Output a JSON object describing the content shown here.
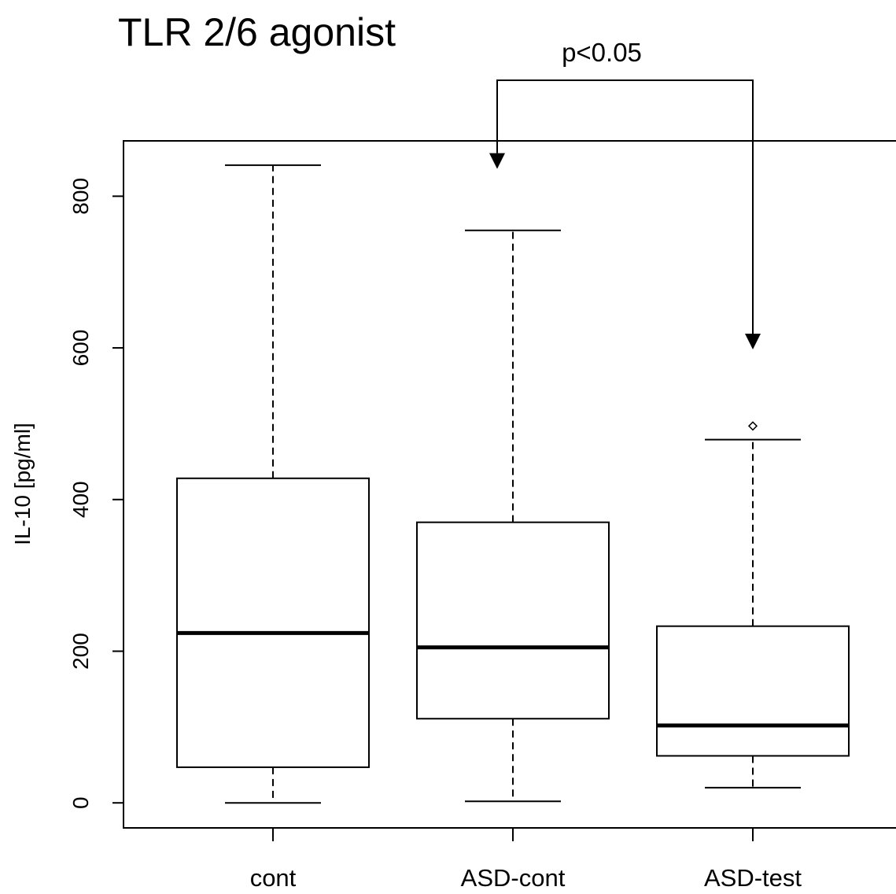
{
  "chart_data": {
    "type": "boxplot",
    "title": "TLR 2/6 agonist",
    "xlabel": "",
    "ylabel": "IL-10 [pg/ml]",
    "ylim": [
      -33,
      873
    ],
    "yticks": [
      0,
      200,
      400,
      600,
      800
    ],
    "categories": [
      "cont",
      "ASD-cont",
      "ASD-test"
    ],
    "boxes": [
      {
        "category": "cont",
        "whisker_low": 0,
        "q1": 47,
        "median": 224,
        "q3": 428,
        "whisker_high": 841,
        "outliers": []
      },
      {
        "category": "ASD-cont",
        "whisker_low": 2,
        "q1": 111,
        "median": 205,
        "q3": 370,
        "whisker_high": 755,
        "outliers": []
      },
      {
        "category": "ASD-test",
        "whisker_low": 20,
        "q1": 62,
        "median": 102,
        "q3": 233,
        "whisker_high": 479,
        "outliers": [
          497
        ]
      }
    ],
    "annotation": {
      "text": "p<0.05",
      "from": "ASD-cont",
      "to": "ASD-test",
      "arrow_tip_values": [
        836,
        598
      ]
    },
    "grid": false,
    "legend": "none"
  }
}
